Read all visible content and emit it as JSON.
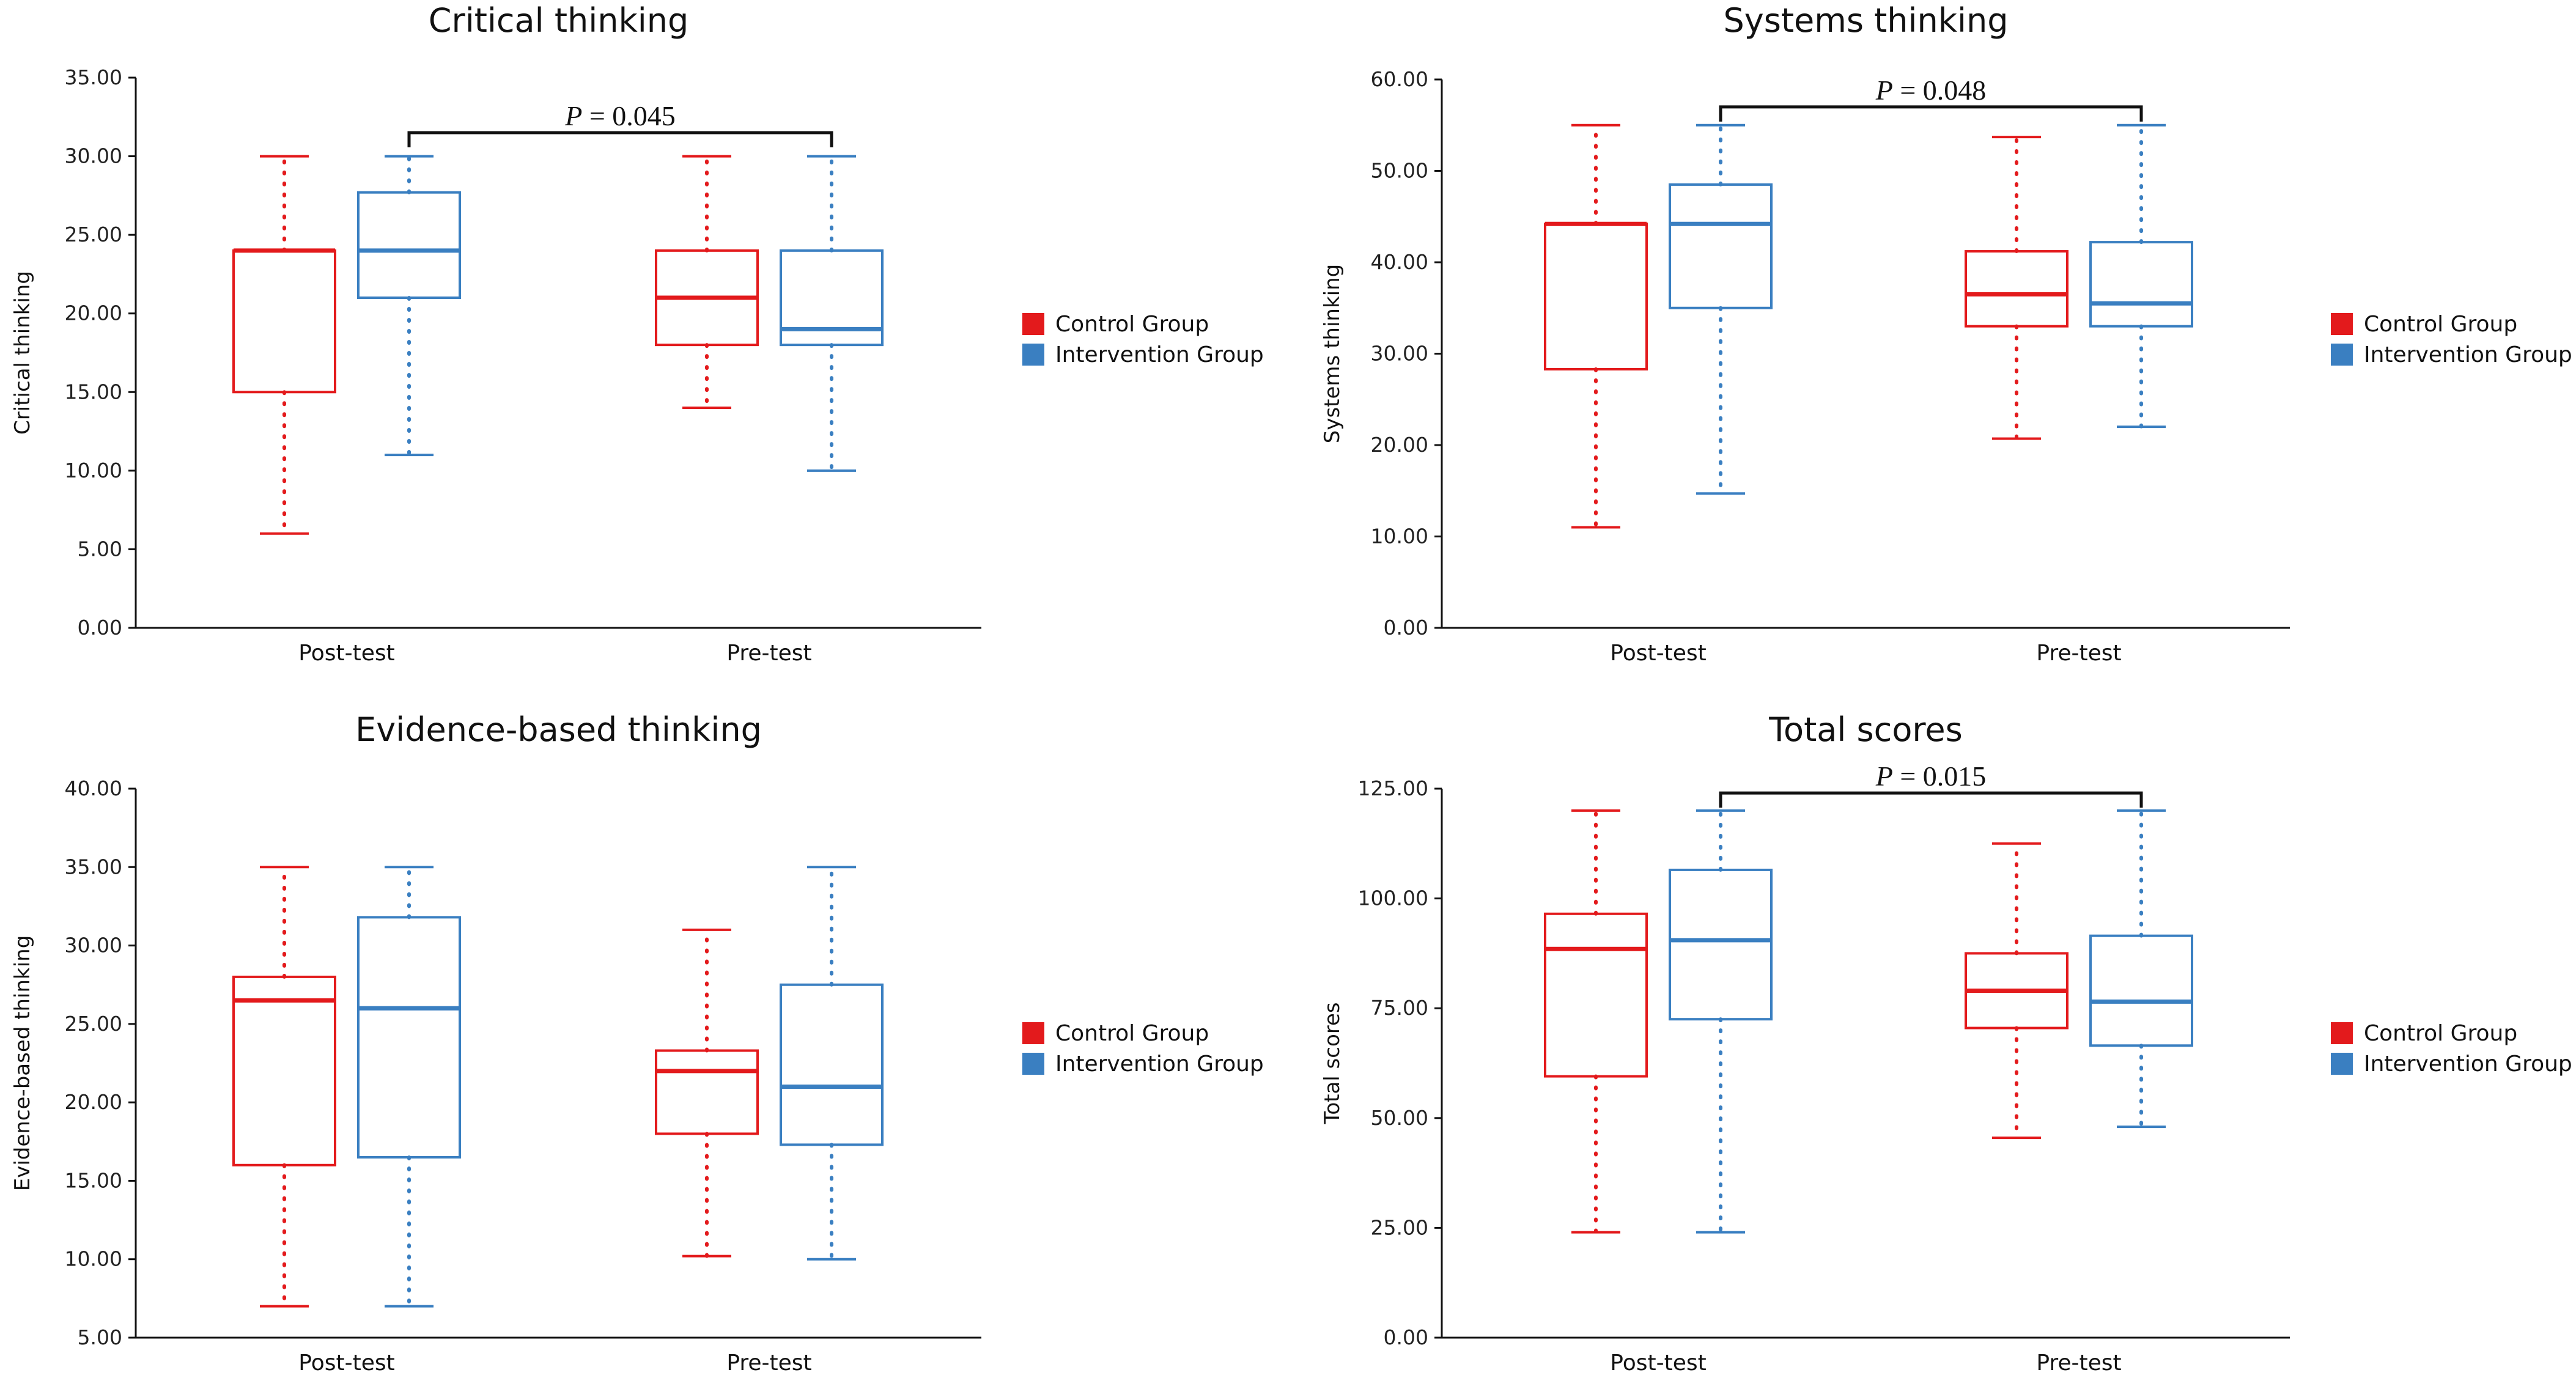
{
  "figure": {
    "legend": [
      {
        "label": "Control Group",
        "color": "#e31a1c"
      },
      {
        "label": "Intervention Group",
        "color": "#3a7fc1"
      }
    ]
  },
  "chart_data": [
    {
      "type": "box",
      "title": "Critical thinking",
      "ylabel": "Critical thinking",
      "ylim": [
        0,
        35
      ],
      "yticks": [
        "0.00",
        "5.00",
        "10.00",
        "15.00",
        "20.00",
        "25.00",
        "30.00",
        "35.00"
      ],
      "categories": [
        "Post-test",
        "Pre-test"
      ],
      "series": [
        {
          "name": "Control Group",
          "color": "#e31a1c",
          "boxes": [
            {
              "min": 6,
              "q1": 15,
              "median": 24,
              "q3": 24,
              "max": 30
            },
            {
              "min": 14,
              "q1": 18,
              "median": 21,
              "q3": 24,
              "max": 30
            }
          ]
        },
        {
          "name": "Intervention Group",
          "color": "#3a7fc1",
          "boxes": [
            {
              "min": 11,
              "q1": 21,
              "median": 24,
              "q3": 27.7,
              "max": 30
            },
            {
              "min": 10,
              "q1": 18,
              "median": 19,
              "q3": 24,
              "max": 30
            }
          ]
        }
      ],
      "annotation": {
        "p_symbol": "P",
        "p_text": " = 0.045",
        "from": "Post-test",
        "to": "Pre-test",
        "y": 31.5
      }
    },
    {
      "type": "box",
      "title": "Systems thinking",
      "ylabel": "Systems thinking",
      "ylim": [
        0,
        60
      ],
      "yticks": [
        "0.00",
        "10.00",
        "20.00",
        "30.00",
        "40.00",
        "50.00",
        "60.00"
      ],
      "categories": [
        "Post-test",
        "Pre-test"
      ],
      "series": [
        {
          "name": "Control Group",
          "color": "#e31a1c",
          "boxes": [
            {
              "min": 11,
              "q1": 28.3,
              "median": 44.2,
              "q3": 44.2,
              "max": 55
            },
            {
              "min": 20.7,
              "q1": 33,
              "median": 36.5,
              "q3": 41.2,
              "max": 53.7
            }
          ]
        },
        {
          "name": "Intervention Group",
          "color": "#3a7fc1",
          "boxes": [
            {
              "min": 14.7,
              "q1": 35,
              "median": 44.2,
              "q3": 48.5,
              "max": 55
            },
            {
              "min": 22,
              "q1": 33,
              "median": 35.5,
              "q3": 42.2,
              "max": 55
            }
          ]
        }
      ],
      "annotation": {
        "p_symbol": "P",
        "p_text": " = 0.048",
        "from": "Post-test",
        "to": "Pre-test",
        "y": 57
      }
    },
    {
      "type": "box",
      "title": "Evidence-based thinking",
      "ylabel": "Evidence-based thinking",
      "ylim": [
        5,
        40
      ],
      "yticks": [
        "5.00",
        "10.00",
        "15.00",
        "20.00",
        "25.00",
        "30.00",
        "35.00",
        "40.00"
      ],
      "categories": [
        "Post-test",
        "Pre-test"
      ],
      "series": [
        {
          "name": "Control Group",
          "color": "#e31a1c",
          "boxes": [
            {
              "min": 7,
              "q1": 16,
              "median": 26.5,
              "q3": 28,
              "max": 35
            },
            {
              "min": 10.2,
              "q1": 18,
              "median": 22,
              "q3": 23.3,
              "max": 31
            }
          ]
        },
        {
          "name": "Intervention Group",
          "color": "#3a7fc1",
          "boxes": [
            {
              "min": 7,
              "q1": 16.5,
              "median": 26,
              "q3": 31.8,
              "max": 35
            },
            {
              "min": 10,
              "q1": 17.3,
              "median": 21,
              "q3": 27.5,
              "max": 35
            }
          ]
        }
      ],
      "annotation": null
    },
    {
      "type": "box",
      "title": "Total scores",
      "ylabel": "Total scores",
      "ylim": [
        0,
        125
      ],
      "yticks": [
        "0.00",
        "25.00",
        "50.00",
        "75.00",
        "100.00",
        "125.00"
      ],
      "categories": [
        "Post-test",
        "Pre-test"
      ],
      "series": [
        {
          "name": "Control Group",
          "color": "#e31a1c",
          "boxes": [
            {
              "min": 24,
              "q1": 59.5,
              "median": 88.5,
              "q3": 96.5,
              "max": 120
            },
            {
              "min": 45.5,
              "q1": 70.5,
              "median": 79,
              "q3": 87.5,
              "max": 112.5
            }
          ]
        },
        {
          "name": "Intervention Group",
          "color": "#3a7fc1",
          "boxes": [
            {
              "min": 24,
              "q1": 72.5,
              "median": 90.5,
              "q3": 106.5,
              "max": 120
            },
            {
              "min": 48,
              "q1": 66.5,
              "median": 76.5,
              "q3": 91.5,
              "max": 120
            }
          ]
        }
      ],
      "annotation": {
        "p_symbol": "P",
        "p_text": " = 0.015",
        "from": "Post-test",
        "to": "Pre-test",
        "y": 124
      }
    }
  ]
}
